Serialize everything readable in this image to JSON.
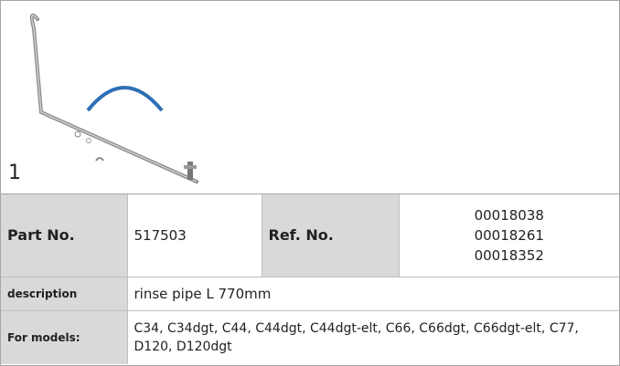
{
  "figure": {
    "label": "1"
  },
  "table": {
    "part": {
      "label": "Part No.",
      "value": "517503",
      "ref_label": "Ref. No.",
      "ref_values": [
        "00018038",
        "00018261",
        "00018352"
      ]
    },
    "rows": [
      {
        "label": "description",
        "value": "rinse pipe  L 770mm"
      },
      {
        "label": "For models:",
        "value": "C34, C34dgt, C44, C44dgt, C44dgt-elt, C66, C66dgt, C66dgt-elt, C77, D120, D120dgt"
      }
    ]
  }
}
